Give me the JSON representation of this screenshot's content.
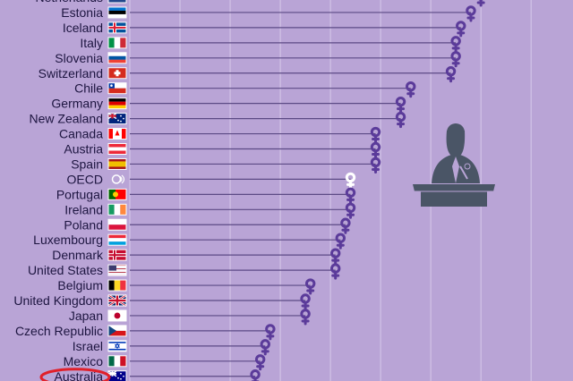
{
  "chart_data": {
    "type": "lollipop",
    "title": "",
    "xlabel": "",
    "ylabel": "",
    "grid": true,
    "highlight": "Australia",
    "colors": {
      "background": "#b9a4d6",
      "marker": "#5b3b9a",
      "marker_highlight": "#ffffff",
      "grid": "#d6c9ea",
      "stem": "#5c4a85",
      "highlight_ring": "#e0202a",
      "podium": "#4a5566"
    },
    "categories": [
      "Netherlands",
      "Estonia",
      "Iceland",
      "Italy",
      "Slovenia",
      "Switzerland",
      "Chile",
      "Germany",
      "New Zealand",
      "Canada",
      "Austria",
      "Spain",
      "OECD",
      "Portugal",
      "Ireland",
      "Poland",
      "Luxembourg",
      "Denmark",
      "United States",
      "Belgium",
      "United Kingdom",
      "Japan",
      "Czech Republic",
      "Israel",
      "Mexico",
      "Australia"
    ],
    "values": [
      70,
      68,
      66,
      65,
      65,
      64,
      56,
      54,
      54,
      49,
      49,
      49,
      44,
      44,
      44,
      43,
      42,
      41,
      41,
      36,
      35,
      35,
      28,
      27,
      26,
      25
    ],
    "xlim": [
      0,
      88
    ],
    "flags": [
      {
        "type": "h3",
        "colors": [
          "#ae1c28",
          "#ffffff",
          "#21468b"
        ]
      },
      {
        "type": "h3",
        "colors": [
          "#0072ce",
          "#000000",
          "#ffffff"
        ]
      },
      {
        "type": "nordic",
        "colors": [
          "#02529c",
          "#ffffff",
          "#dc1e35"
        ]
      },
      {
        "type": "v3",
        "colors": [
          "#009246",
          "#ffffff",
          "#ce2b37"
        ]
      },
      {
        "type": "h3",
        "colors": [
          "#ffffff",
          "#0055a4",
          "#ef4135"
        ]
      },
      {
        "type": "cross",
        "colors": [
          "#d52b1e",
          "#ffffff"
        ]
      },
      {
        "type": "chile",
        "colors": [
          "#ffffff",
          "#d52b1e",
          "#0039a6"
        ]
      },
      {
        "type": "h3",
        "colors": [
          "#000000",
          "#dd0000",
          "#ffce00"
        ]
      },
      {
        "type": "canton",
        "colors": [
          "#00247d",
          "#cc142b"
        ]
      },
      {
        "type": "canada",
        "colors": [
          "#ff0000",
          "#ffffff"
        ]
      },
      {
        "type": "h3",
        "colors": [
          "#ed2939",
          "#ffffff",
          "#ed2939"
        ]
      },
      {
        "type": "spain",
        "colors": [
          "#aa151b",
          "#f1bf00"
        ]
      },
      {
        "type": "oecd",
        "colors": [
          "#b9a4d6",
          "#ffffff"
        ]
      },
      {
        "type": "portugal",
        "colors": [
          "#006600",
          "#ff0000",
          "#ffcc00"
        ]
      },
      {
        "type": "v3",
        "colors": [
          "#169b62",
          "#ffffff",
          "#ff883e"
        ]
      },
      {
        "type": "h2",
        "colors": [
          "#ffffff",
          "#dc143c"
        ]
      },
      {
        "type": "h3",
        "colors": [
          "#ed2939",
          "#ffffff",
          "#00a1de"
        ]
      },
      {
        "type": "nordic",
        "colors": [
          "#c60c30",
          "#ffffff",
          "#c60c30"
        ]
      },
      {
        "type": "usa",
        "colors": [
          "#b22234",
          "#ffffff",
          "#3c3b6e"
        ]
      },
      {
        "type": "v3",
        "colors": [
          "#000000",
          "#fdda24",
          "#ef3340"
        ]
      },
      {
        "type": "uk",
        "colors": [
          "#012169",
          "#ffffff",
          "#c8102e"
        ]
      },
      {
        "type": "japan",
        "colors": [
          "#ffffff",
          "#bc002d"
        ]
      },
      {
        "type": "czech",
        "colors": [
          "#ffffff",
          "#d7141a",
          "#11457e"
        ]
      },
      {
        "type": "israel",
        "colors": [
          "#ffffff",
          "#0038b8"
        ]
      },
      {
        "type": "v3",
        "colors": [
          "#006847",
          "#ffffff",
          "#ce1126"
        ]
      },
      {
        "type": "canton",
        "colors": [
          "#00008b",
          "#ffffff"
        ]
      }
    ]
  }
}
